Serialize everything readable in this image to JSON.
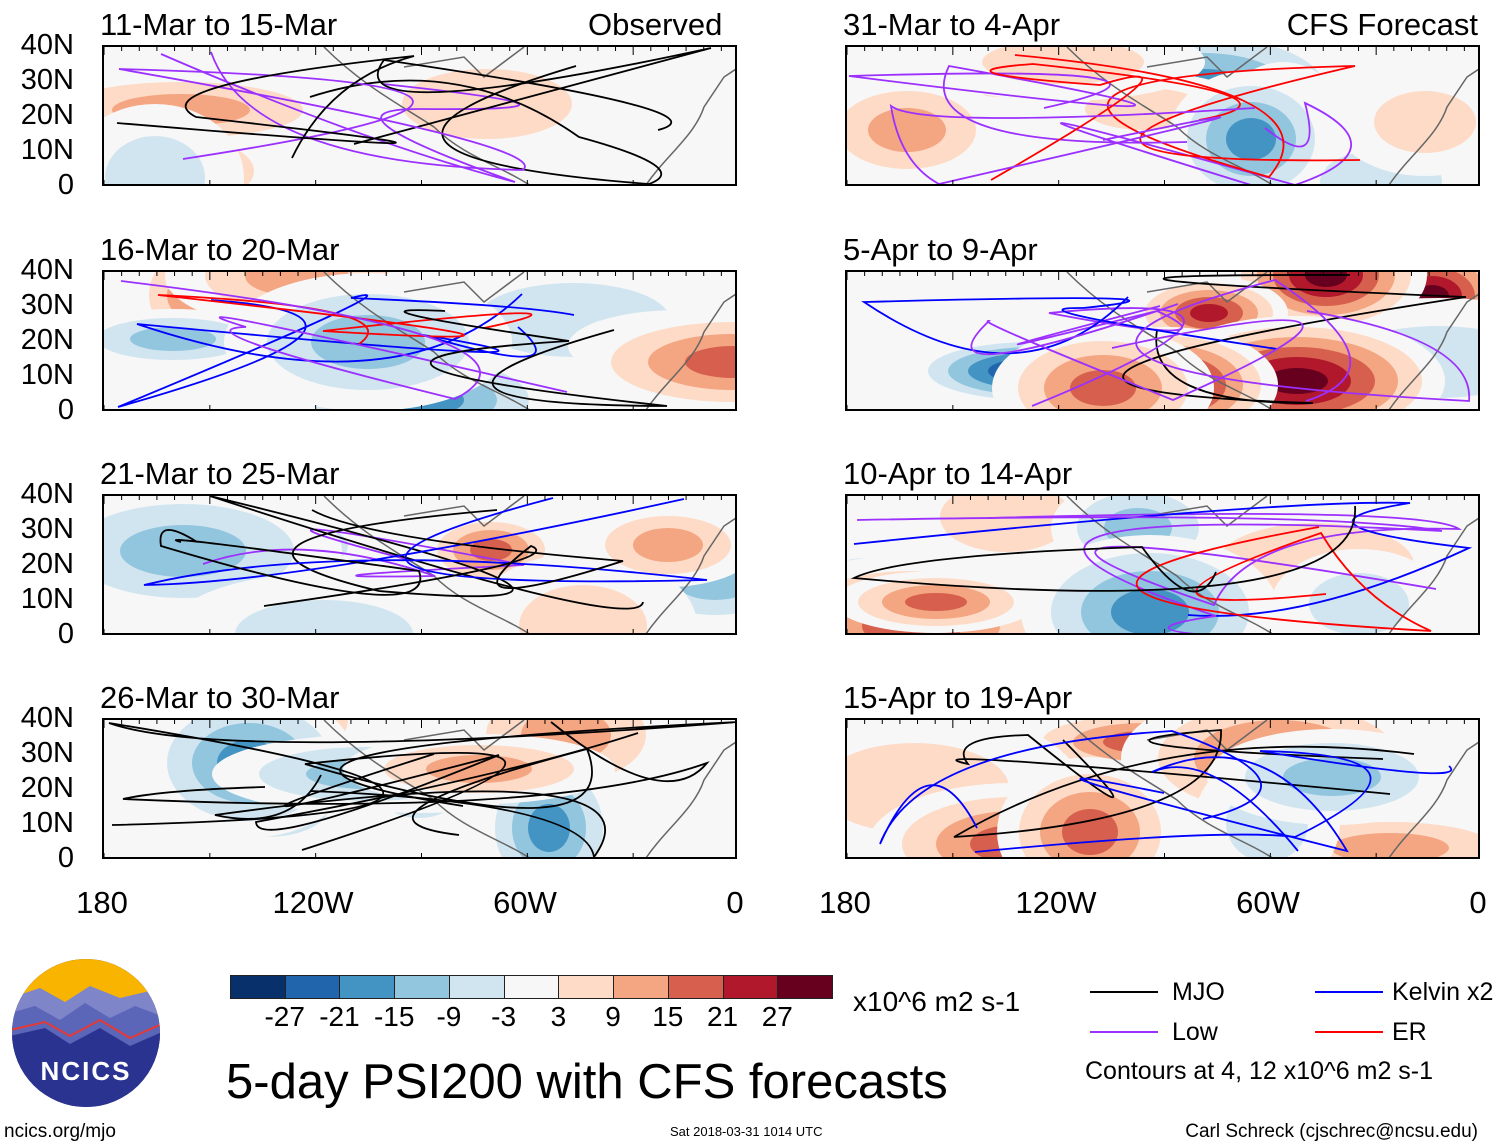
{
  "figure_title": "5-day PSI200 with CFS forecasts",
  "column_labels": {
    "left": "Observed",
    "right": "CFS Forecast"
  },
  "panels": {
    "left": [
      "11-Mar to 15-Mar",
      "16-Mar to 20-Mar",
      "21-Mar to 25-Mar",
      "26-Mar to 30-Mar"
    ],
    "right": [
      "31-Mar to 4-Apr",
      "5-Apr to 9-Apr",
      "10-Apr to 14-Apr",
      "15-Apr to 19-Apr"
    ]
  },
  "lat_labels": [
    "40N",
    "30N",
    "20N",
    "10N",
    "0"
  ],
  "lon_labels": [
    "180",
    "120W",
    "60W",
    "0"
  ],
  "colorbar": {
    "colors": [
      "#08306b",
      "#2166ac",
      "#4393c3",
      "#92c5de",
      "#d1e5f0",
      "#f7f7f7",
      "#fddbc7",
      "#f4a582",
      "#d6604d",
      "#b2182b",
      "#67001f"
    ],
    "labels": [
      "-27",
      "-21",
      "-15",
      "-9",
      "-3",
      "3",
      "9",
      "15",
      "21",
      "27"
    ],
    "units": "x10^6 m2 s-1"
  },
  "legend": {
    "items": [
      {
        "label": "MJO",
        "color": "#000000"
      },
      {
        "label": "Low",
        "color": "#9b30ff"
      },
      {
        "label": "Kelvin x2",
        "color": "#0000ff"
      },
      {
        "label": "ER",
        "color": "#ff0000"
      }
    ],
    "note": "Contours at 4, 12 x10^6 m2 s-1"
  },
  "logo_text": "NCICS",
  "footer": {
    "left": "ncics.org/mjo",
    "center": "Sat 2018-03-31 1014 UTC",
    "right": "Carl Schreck (cjschrec@ncsu.edu)"
  }
}
